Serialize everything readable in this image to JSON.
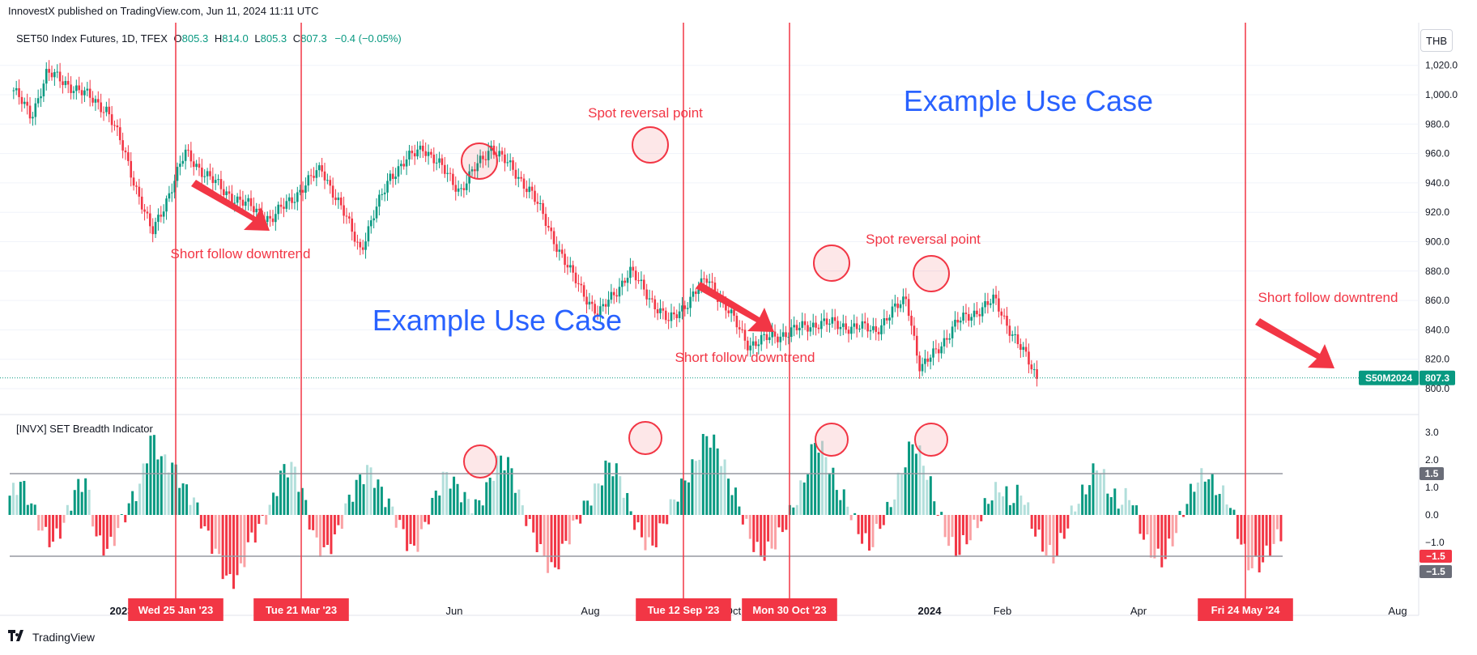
{
  "header": {
    "published": "InnovestX published on TradingView.com, Jun 11, 2024 11:11 UTC",
    "currency": "THB",
    "symbol": "SET50 Index Futures, 1D, TFEX",
    "ohlc": [
      {
        "k": "O",
        "v": "805.3"
      },
      {
        "k": "H",
        "v": "814.0"
      },
      {
        "k": "L",
        "v": "805.3"
      },
      {
        "k": "C",
        "v": "807.3"
      }
    ],
    "change": "−0.4 (−0.05%)"
  },
  "indicator": {
    "title": "[INVX] SET Breadth Indicator"
  },
  "footer": {
    "brand": "TradingView"
  },
  "colors": {
    "up": "#089981",
    "down": "#f23645",
    "up_light": "#b2dfdb",
    "down_light": "#faa1a4",
    "annotation": "#f23645",
    "text_blue": "#2962ff"
  },
  "chart_data": [
    {
      "type": "candlestick",
      "series_label": "S50M2024",
      "last_price": "807.3",
      "ylim": [
        795,
        1030
      ],
      "yticks": [
        "1,020.0",
        "1,000.0",
        "980.0",
        "960.0",
        "940.0",
        "920.0",
        "900.0",
        "880.0",
        "860.0",
        "840.0",
        "820.0",
        "800.0"
      ],
      "xticks": [
        "2023",
        "Mar",
        "Jun",
        "Aug",
        "Oct",
        "2024",
        "Feb",
        "Apr",
        "Aug"
      ],
      "date_markers": [
        "Wed 25 Jan '23",
        "Tue 21 Mar '23",
        "Tue 12 Sep '23",
        "Mon 30 Oct '23",
        "Fri 24 May '24"
      ],
      "price_path": [
        {
          "date": "2023-01-03",
          "close": 1003
        },
        {
          "date": "2023-01-12",
          "close": 985
        },
        {
          "date": "2023-01-20",
          "close": 1015
        },
        {
          "date": "2023-02-03",
          "close": 1005
        },
        {
          "date": "2023-02-20",
          "close": 990
        },
        {
          "date": "2023-03-01",
          "close": 960
        },
        {
          "date": "2023-03-15",
          "close": 905
        },
        {
          "date": "2023-04-01",
          "close": 960
        },
        {
          "date": "2023-04-20",
          "close": 935
        },
        {
          "date": "2023-05-15",
          "close": 915
        },
        {
          "date": "2023-06-10",
          "close": 950
        },
        {
          "date": "2023-06-30",
          "close": 895
        },
        {
          "date": "2023-07-15",
          "close": 945
        },
        {
          "date": "2023-08-01",
          "close": 965
        },
        {
          "date": "2023-08-20",
          "close": 935
        },
        {
          "date": "2023-09-05",
          "close": 965
        },
        {
          "date": "2023-09-25",
          "close": 935
        },
        {
          "date": "2023-10-15",
          "close": 880
        },
        {
          "date": "2023-10-30",
          "close": 850
        },
        {
          "date": "2023-11-15",
          "close": 880
        },
        {
          "date": "2023-12-05",
          "close": 845
        },
        {
          "date": "2023-12-25",
          "close": 875
        },
        {
          "date": "2024-01-15",
          "close": 830
        },
        {
          "date": "2024-02-20",
          "close": 845
        },
        {
          "date": "2024-03-20",
          "close": 840
        },
        {
          "date": "2024-04-05",
          "close": 862
        },
        {
          "date": "2024-04-12",
          "close": 812
        },
        {
          "date": "2024-05-01",
          "close": 845
        },
        {
          "date": "2024-05-20",
          "close": 860
        },
        {
          "date": "2024-06-11",
          "close": 807
        }
      ],
      "annotations": {
        "titles": [
          "Example Use Case",
          "Example Use Case"
        ],
        "spot_reversal": [
          "Spot reversal point",
          "Spot reversal point"
        ],
        "short_follow": [
          "Short follow downtrend",
          "Short follow downtrend",
          "Short follow downtrend"
        ]
      }
    },
    {
      "type": "bar",
      "title": "[INVX] SET Breadth Indicator",
      "ylim": [
        -2.5,
        3.5
      ],
      "yticks": [
        "3.0",
        "2.0",
        "1.0",
        "0.0",
        "−1.0"
      ],
      "levels": {
        "upper": 1.5,
        "lower": -1.5
      },
      "level_labels": {
        "upper": "1.5",
        "lower_value": "−1.5",
        "lower_level": "−1.5"
      },
      "pattern_shape": [
        0.7,
        1.2,
        0.4,
        -0.6,
        -1.0,
        -0.3,
        0.9,
        1.3,
        -0.9,
        -1.3,
        -0.5,
        0.4,
        1.1,
        2.9,
        2.0,
        1.8,
        1.0,
        0.5,
        -0.6,
        -1.4,
        -2.4,
        -2.3,
        -1.0,
        -0.4,
        0.3,
        1.6,
        1.8,
        0.7,
        -0.9,
        -1.4,
        -0.8,
        0.4,
        1.2,
        1.7,
        1.0,
        0.3,
        -0.5,
        -1.4,
        -0.6,
        0.6,
        1.5,
        1.1,
        0.5,
        0.3,
        1.1,
        2.1,
        1.8,
        0.4,
        -0.6,
        -1.5,
        -2.1,
        -1.1,
        -0.3,
        0.4,
        1.0,
        1.9,
        1.5,
        0.2,
        -0.8,
        -1.2,
        -0.4,
        0.5,
        1.2,
        1.9,
        2.9,
        2.5,
        1.4,
        0.4,
        -0.8,
        -1.5,
        -1.2,
        -0.6,
        0.3,
        1.2,
        2.7,
        2.2,
        1.0,
        0.4,
        -0.6,
        -1.2,
        -0.4,
        0.4,
        1.6,
        2.7,
        1.9,
        0.6,
        -0.7,
        -1.4,
        -0.9,
        -0.3,
        0.6,
        1.0,
        0.5,
        0.9,
        -0.4,
        -1.2,
        -1.6,
        -0.6,
        0.4,
        1.0,
        1.9,
        0.9,
        0.4,
        0.8,
        -0.6,
        -1.4,
        -1.7,
        -0.8,
        0.3,
        1.2,
        1.5,
        0.9,
        0.6,
        -0.8,
        -1.9,
        -1.8,
        -1.1,
        -0.6
      ]
    }
  ]
}
